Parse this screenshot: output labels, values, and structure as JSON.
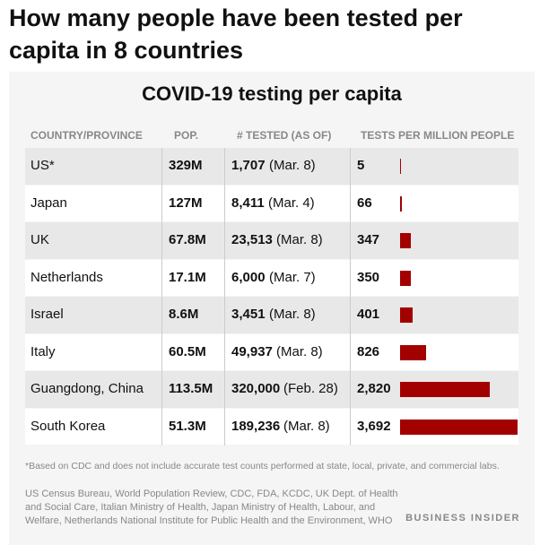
{
  "header": {
    "title": "How many people have been tested per capita in 8 countries"
  },
  "chart_data": {
    "type": "bar",
    "title": "COVID-19 testing per capita",
    "columns": [
      "COUNTRY/PROVINCE",
      "POP.",
      "# TESTED (AS OF)",
      "TESTS PER MILLION PEOPLE"
    ],
    "categories": [
      "US*",
      "Japan",
      "UK",
      "Netherlands",
      "Israel",
      "Italy",
      "Guangdong, China",
      "South Korea"
    ],
    "population": [
      "329M",
      "127M",
      "67.8M",
      "17.1M",
      "8.6M",
      "60.5M",
      "113.5M",
      "51.3M"
    ],
    "tested": [
      "1,707",
      "8,411",
      "23,513",
      "6,000",
      "3,451",
      "49,937",
      "320,000",
      "189,236"
    ],
    "tested_date": [
      "(Mar. 8)",
      "(Mar. 4)",
      "(Mar. 8)",
      "(Mar. 7)",
      "(Mar. 8)",
      "(Mar. 8)",
      "(Feb. 28)",
      "(Mar. 8)"
    ],
    "values": [
      5,
      66,
      347,
      350,
      401,
      826,
      2820,
      3692
    ],
    "value_labels": [
      "5",
      "66",
      "347",
      "350",
      "401",
      "826",
      "2,820",
      "3,692"
    ],
    "color": "#a30000",
    "xlim": [
      0,
      3692
    ]
  },
  "footnote": "*Based on CDC and does not include accurate test counts performed at state, local, private, and commercial labs.",
  "source": "US Census Bureau, World Population Review, CDC, FDA, KCDC, UK Dept. of Health and Social Care, Italian Ministry of Health, Japan Ministry of Health, Labour, and Welfare, Netherlands National Institute for Public Health and the Environment, WHO",
  "brand": "BUSINESS INSIDER"
}
